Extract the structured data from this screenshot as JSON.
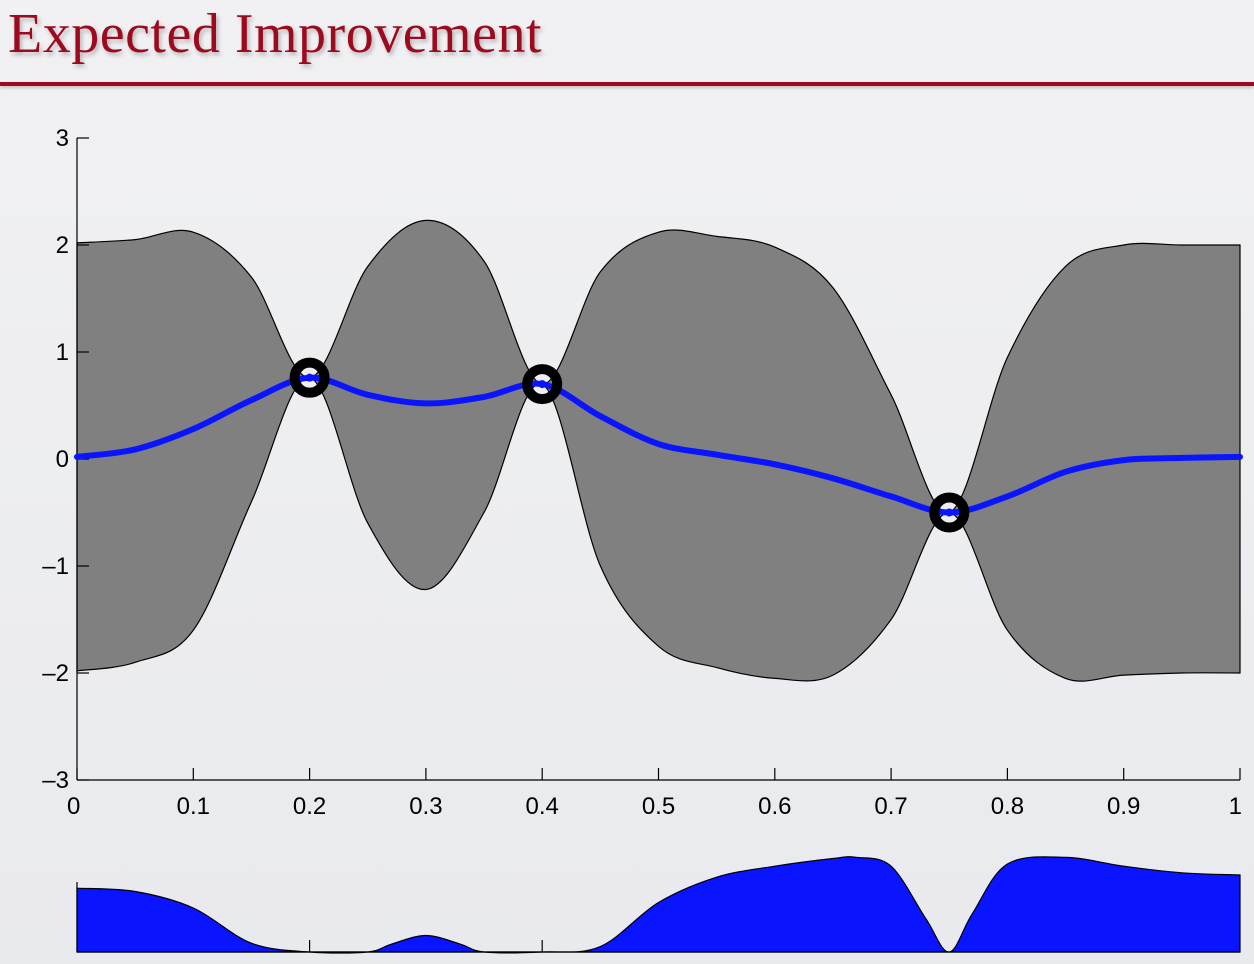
{
  "slide": {
    "title": "Expected Improvement"
  },
  "chart_data": [
    {
      "type": "line",
      "title": "",
      "xlabel": "",
      "ylabel": "",
      "xlim": [
        0,
        1
      ],
      "ylim": [
        -3,
        3
      ],
      "x_ticks": [
        "0",
        "0.1",
        "0.2",
        "0.3",
        "0.4",
        "0.5",
        "0.6",
        "0.7",
        "0.8",
        "0.9",
        "1"
      ],
      "y_ticks": [
        "3",
        "2",
        "1",
        "0",
        "–1",
        "–2",
        "–3"
      ],
      "y_tick_values": [
        3,
        2,
        1,
        0,
        -1,
        -2,
        -3
      ],
      "grid": false,
      "series": [
        {
          "kind": "band",
          "x": [
            0.0,
            0.05,
            0.1,
            0.15,
            0.2,
            0.25,
            0.3,
            0.35,
            0.4,
            0.45,
            0.5,
            0.55,
            0.6,
            0.65,
            0.7,
            0.75,
            0.8,
            0.85,
            0.9,
            0.95,
            1.0
          ],
          "upper": [
            2.02,
            2.05,
            2.12,
            1.7,
            0.76,
            1.8,
            2.23,
            1.85,
            0.7,
            1.75,
            2.12,
            2.08,
            1.98,
            1.6,
            0.6,
            -0.5,
            0.95,
            1.8,
            2.0,
            2.0,
            2.0
          ],
          "lower": [
            -1.98,
            -1.9,
            -1.6,
            -0.4,
            0.76,
            -0.6,
            -1.22,
            -0.5,
            0.7,
            -1.0,
            -1.75,
            -1.95,
            -2.05,
            -2.02,
            -1.5,
            -0.5,
            -1.6,
            -2.05,
            -2.02,
            -2.0,
            -2.0
          ],
          "color": "#808080"
        },
        {
          "kind": "mean",
          "x": [
            0.0,
            0.05,
            0.1,
            0.15,
            0.2,
            0.25,
            0.3,
            0.35,
            0.4,
            0.45,
            0.5,
            0.55,
            0.6,
            0.65,
            0.7,
            0.75,
            0.8,
            0.85,
            0.9,
            0.95,
            1.0
          ],
          "y": [
            0.02,
            0.09,
            0.28,
            0.55,
            0.76,
            0.6,
            0.52,
            0.58,
            0.7,
            0.4,
            0.14,
            0.04,
            -0.05,
            -0.18,
            -0.35,
            -0.5,
            -0.35,
            -0.12,
            -0.01,
            0.01,
            0.02
          ],
          "color": "#0a14ff"
        },
        {
          "kind": "observations",
          "x": [
            0.2,
            0.4,
            0.75
          ],
          "y": [
            0.76,
            0.7,
            -0.5
          ],
          "color": "#000000"
        }
      ]
    },
    {
      "type": "area",
      "title": "",
      "xlabel": "",
      "ylabel": "",
      "xlim": [
        0,
        1
      ],
      "ylim": [
        0,
        1
      ],
      "x_tick_positions": [
        0.2,
        0.4
      ],
      "grid": false,
      "series": [
        {
          "x": [
            0.0,
            0.05,
            0.1,
            0.15,
            0.2,
            0.25,
            0.27,
            0.3,
            0.33,
            0.35,
            0.4,
            0.45,
            0.5,
            0.55,
            0.6,
            0.65,
            0.67,
            0.7,
            0.73,
            0.75,
            0.77,
            0.8,
            0.85,
            0.9,
            0.95,
            1.0
          ],
          "y": [
            0.58,
            0.55,
            0.4,
            0.08,
            0.0,
            0.0,
            0.07,
            0.15,
            0.07,
            0.0,
            0.0,
            0.05,
            0.45,
            0.68,
            0.78,
            0.85,
            0.86,
            0.78,
            0.3,
            0.0,
            0.35,
            0.8,
            0.86,
            0.78,
            0.72,
            0.7
          ],
          "color": "#0a14ff"
        }
      ]
    }
  ]
}
